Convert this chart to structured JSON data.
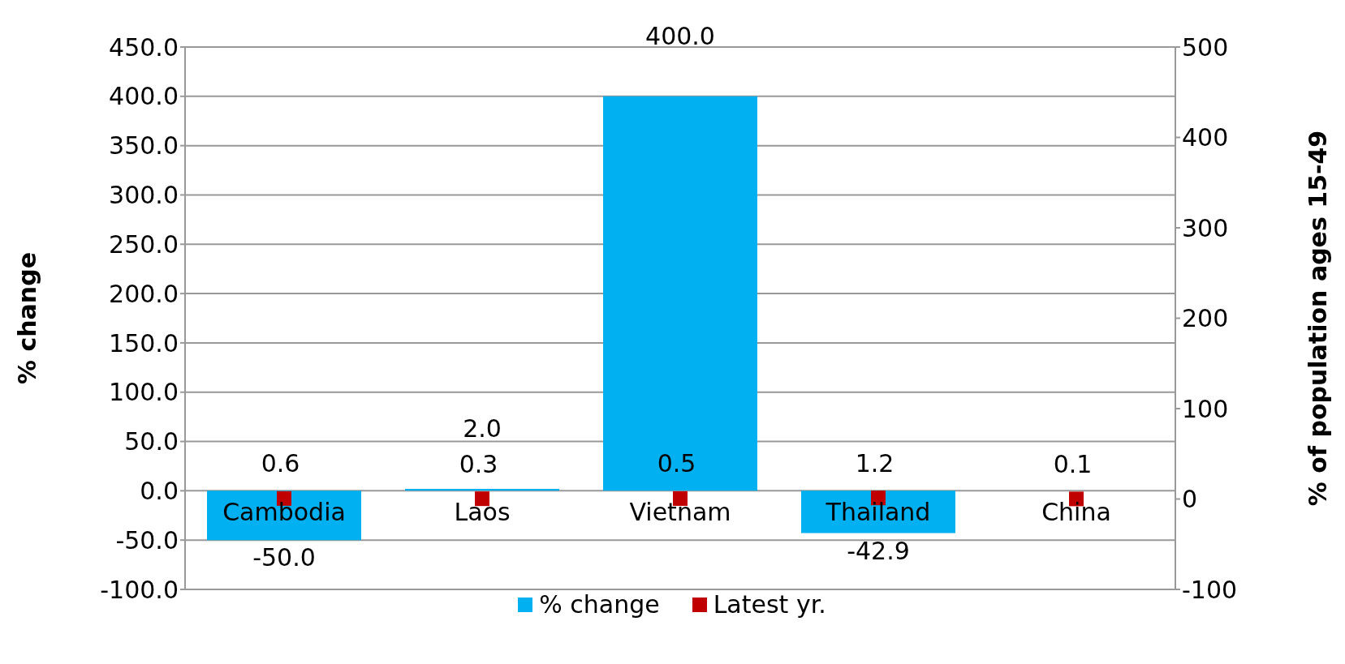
{
  "chart_data": {
    "type": "bar",
    "categories": [
      "Cambodia",
      "Laos",
      "Vietnam",
      "Thailand",
      "China"
    ],
    "series": [
      {
        "name": "% change",
        "color": "#00b0f0",
        "values": [
          -50.0,
          2.0,
          400.0,
          -42.9,
          null
        ],
        "value_labels": [
          "-50.0",
          "2.0",
          "400.0",
          "-42.9",
          null
        ]
      },
      {
        "name": "Latest yr.",
        "type": "scatter",
        "axis": "y2",
        "color": "#c00000",
        "values": [
          0.6,
          0.3,
          0.5,
          1.2,
          0.1
        ],
        "value_labels": [
          "0.6",
          "0.3",
          "0.5",
          "1.2",
          "0.1"
        ]
      }
    ],
    "ylabel": "% change",
    "y2label": "% of population ages 15-49",
    "ylim": [
      -100,
      450
    ],
    "yticks": [
      {
        "value": -100,
        "label": "-100.0"
      },
      {
        "value": -50,
        "label": "-50.0"
      },
      {
        "value": 0,
        "label": "0.0"
      },
      {
        "value": 50,
        "label": "50.0"
      },
      {
        "value": 100,
        "label": "100.0"
      },
      {
        "value": 150,
        "label": "150.0"
      },
      {
        "value": 200,
        "label": "200.0"
      },
      {
        "value": 250,
        "label": "250.0"
      },
      {
        "value": 300,
        "label": "300.0"
      },
      {
        "value": 350,
        "label": "350.0"
      },
      {
        "value": 400,
        "label": "400.0"
      },
      {
        "value": 450,
        "label": "450.0"
      }
    ],
    "y2lim": [
      -100,
      500
    ],
    "y2ticks": [
      -100,
      0,
      100,
      200,
      300,
      400,
      500
    ],
    "grid": "y",
    "legend": "bottom",
    "marker": "square"
  }
}
